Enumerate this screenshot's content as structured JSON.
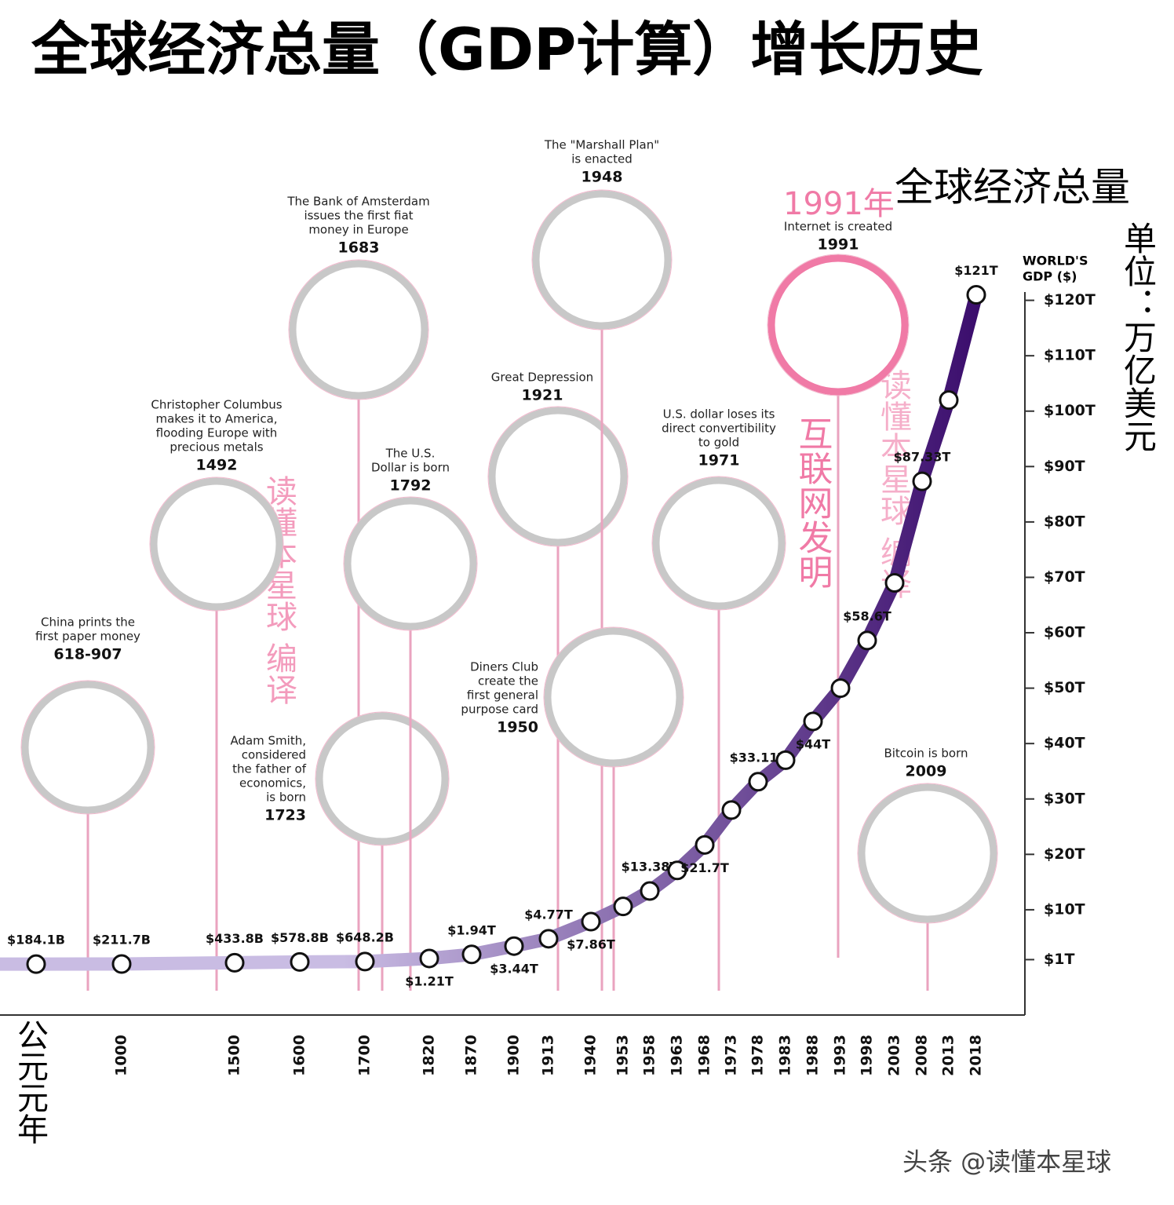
{
  "chart_data": {
    "type": "line",
    "title": "全球经济总量（GDP计算）增长历史",
    "ylabel": [
      "WORLD'S",
      "GDP ($)"
    ],
    "categories": [
      "公元元年",
      "1000",
      "1500",
      "1600",
      "1700",
      "1820",
      "1870",
      "1900",
      "1913",
      "1940",
      "1953",
      "1958",
      "1963",
      "1968",
      "1973",
      "1978",
      "1983",
      "1988",
      "1993",
      "1998",
      "2003",
      "2008",
      "2013",
      "2018"
    ],
    "values": [
      0.1841,
      0.2117,
      0.4338,
      0.5788,
      0.6482,
      1.21,
      1.94,
      3.44,
      4.77,
      7.86,
      10.6,
      13.38,
      17.1,
      21.7,
      28,
      33.11,
      37,
      44,
      50,
      58.6,
      69,
      87.33,
      102,
      121
    ],
    "value_labels": [
      "$184.1B",
      "$211.7B",
      "$433.8B",
      "$578.8B",
      "$648.2B",
      "$1.21T",
      "$1.94T",
      "$3.44T",
      "$4.77T",
      "$7.86T",
      null,
      "$13.38T",
      null,
      "$21.7T",
      null,
      "$33.11T",
      null,
      "$44T",
      null,
      "$58.6T",
      null,
      "$87.33T",
      null,
      "$121T"
    ],
    "color_start": "#c9bce3",
    "color_end": "#3a0c6c",
    "ylim": [
      -9,
      121.5
    ],
    "yticks": [
      {
        "value": 1,
        "label": "$1T"
      },
      {
        "value": 10,
        "label": "$10T"
      },
      {
        "value": 20,
        "label": "$20T"
      },
      {
        "value": 30,
        "label": "$30T"
      },
      {
        "value": 40,
        "label": "$40T"
      },
      {
        "value": 50,
        "label": "$50T"
      },
      {
        "value": 60,
        "label": "$60T"
      },
      {
        "value": 70,
        "label": "$70T"
      },
      {
        "value": 80,
        "label": "$80T"
      },
      {
        "value": 90,
        "label": "$90T"
      },
      {
        "value": 100,
        "label": "$100T"
      },
      {
        "value": 110,
        "label": "$110T"
      },
      {
        "value": 120,
        "label": "$120T"
      }
    ],
    "grid": false,
    "events": [
      {
        "text": [
          "China prints the",
          "first paper money"
        ],
        "date": "618-907",
        "color": "#c8c8c8"
      },
      {
        "text": [
          "Christopher Columbus",
          "makes it to America,",
          "flooding Europe with",
          "precious metals"
        ],
        "date": "1492",
        "color": "#c8c8c8"
      },
      {
        "text": [
          "The Bank of Amsterdam",
          "issues the first fiat",
          "money in Europe"
        ],
        "date": "1683",
        "color": "#c8c8c8"
      },
      {
        "text": [
          "Adam Smith,",
          "considered",
          "the father of",
          "economics,",
          "is born"
        ],
        "date": "1723",
        "color": "#c8c8c8"
      },
      {
        "text": [
          "The U.S.",
          "Dollar is born"
        ],
        "date": "1792",
        "color": "#c8c8c8"
      },
      {
        "text": [
          "Great Depression"
        ],
        "date": "1921",
        "color": "#c8c8c8"
      },
      {
        "text": [
          "The \"Marshall Plan\"",
          "is enacted"
        ],
        "date": "1948",
        "color": "#c8c8c8"
      },
      {
        "text": [
          "Diners Club",
          "create the",
          "first general",
          "purpose card"
        ],
        "date": "1950",
        "color": "#c8c8c8"
      },
      {
        "text": [
          "U.S. dollar loses its",
          "direct convertibility",
          "to gold"
        ],
        "date": "1971",
        "color": "#c8c8c8"
      },
      {
        "text": [
          "Internet is created"
        ],
        "date": "1991",
        "color": "#f07aa6"
      },
      {
        "text": [
          "Bitcoin is born"
        ],
        "date": "2009",
        "color": "#c8c8c8"
      }
    ],
    "annotations": {
      "total": "全球经济总量",
      "unit": "单位：万亿美元",
      "year_1991": "1991年",
      "internet": "互联网发明",
      "watermark": "读懂本星球 编译",
      "footer": "头条 @读懂本星球"
    }
  }
}
